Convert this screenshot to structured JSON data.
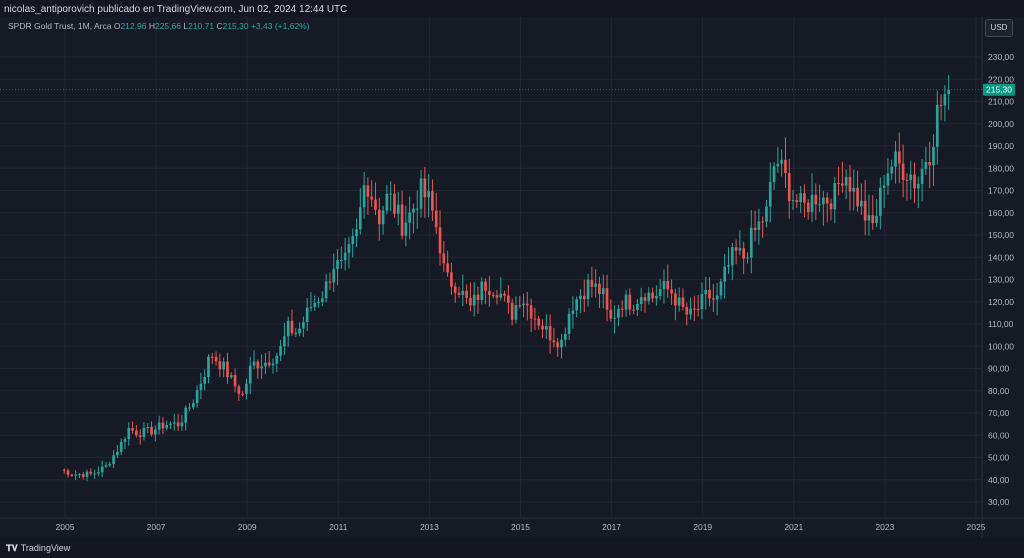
{
  "header": {
    "publisher_text": "nicolas_antiporovich publicado en TradingView.com, Jun 02, 2024 12:44 UTC"
  },
  "legend": {
    "title": "SPDR Gold Trust, 1M, Arca",
    "o_key": "O",
    "o_val": "212,96",
    "h_key": "H",
    "h_val": "225,66",
    "l_key": "L",
    "l_val": "210,71",
    "c_key": "C",
    "c_val": "215,30",
    "change": "+3,43 (+1,62%)"
  },
  "currency_button": "USD",
  "last_price_label": "215,30",
  "footer": {
    "brand": "TradingView"
  },
  "colors": {
    "up": "#26a69a",
    "down": "#ef5350",
    "bg": "#161a25",
    "grid": "#222633",
    "last_price": "#089981"
  },
  "chart_data": {
    "type": "candlestick",
    "title": "SPDR Gold Trust, 1M, Arca",
    "xlabel": "",
    "ylabel": "",
    "ylim": [
      20,
      240
    ],
    "y_ticks": [
      "30,00",
      "40,00",
      "50,00",
      "60,00",
      "70,00",
      "80,00",
      "90,00",
      "100,00",
      "110,00",
      "120,00",
      "130,00",
      "140,00",
      "150,00",
      "160,00",
      "170,00",
      "180,00",
      "190,00",
      "200,00",
      "210,00",
      "220,00",
      "230,00"
    ],
    "y_tick_values": [
      30,
      40,
      50,
      60,
      70,
      80,
      90,
      100,
      110,
      120,
      130,
      140,
      150,
      160,
      170,
      180,
      190,
      200,
      210,
      220,
      230
    ],
    "x_ticks": [
      "2005",
      "2007",
      "2009",
      "2011",
      "2013",
      "2015",
      "2017",
      "2019",
      "2021",
      "2023",
      "2025"
    ],
    "x_tick_values": [
      2005,
      2007,
      2009,
      2011,
      2013,
      2015,
      2017,
      2019,
      2021,
      2023,
      2025
    ],
    "grid": true,
    "last_price": 215.3,
    "anchors": [
      [
        2004.9,
        44.5
      ],
      [
        2005.2,
        42.5
      ],
      [
        2005.6,
        42.5
      ],
      [
        2005.9,
        46
      ],
      [
        2006.2,
        55
      ],
      [
        2006.4,
        63
      ],
      [
        2006.6,
        61
      ],
      [
        2006.9,
        62
      ],
      [
        2007.2,
        65
      ],
      [
        2007.5,
        65
      ],
      [
        2007.8,
        75
      ],
      [
        2008.1,
        90
      ],
      [
        2008.2,
        97
      ],
      [
        2008.5,
        90
      ],
      [
        2008.7,
        83
      ],
      [
        2008.9,
        78
      ],
      [
        2009.1,
        92
      ],
      [
        2009.4,
        93
      ],
      [
        2009.7,
        97
      ],
      [
        2009.9,
        108
      ],
      [
        2010.1,
        106
      ],
      [
        2010.4,
        118
      ],
      [
        2010.7,
        125
      ],
      [
        2010.9,
        137
      ],
      [
        2011.1,
        135
      ],
      [
        2011.4,
        150
      ],
      [
        2011.6,
        176
      ],
      [
        2011.7,
        170
      ],
      [
        2011.9,
        158
      ],
      [
        2012.1,
        168
      ],
      [
        2012.4,
        155
      ],
      [
        2012.6,
        160
      ],
      [
        2012.8,
        170
      ],
      [
        2013.0,
        165
      ],
      [
        2013.2,
        150
      ],
      [
        2013.35,
        130
      ],
      [
        2013.6,
        128
      ],
      [
        2013.9,
        117
      ],
      [
        2014.2,
        128
      ],
      [
        2014.5,
        126
      ],
      [
        2014.8,
        114
      ],
      [
        2015.0,
        123
      ],
      [
        2015.3,
        114
      ],
      [
        2015.6,
        106
      ],
      [
        2015.9,
        102
      ],
      [
        2016.1,
        118
      ],
      [
        2016.5,
        128
      ],
      [
        2016.8,
        124
      ],
      [
        2016.95,
        110
      ],
      [
        2017.2,
        120
      ],
      [
        2017.5,
        120
      ],
      [
        2017.7,
        125
      ],
      [
        2017.9,
        122
      ],
      [
        2018.1,
        126
      ],
      [
        2018.3,
        125
      ],
      [
        2018.5,
        118
      ],
      [
        2018.7,
        113
      ],
      [
        2018.9,
        117
      ],
      [
        2019.1,
        123
      ],
      [
        2019.3,
        120
      ],
      [
        2019.5,
        133
      ],
      [
        2019.7,
        142
      ],
      [
        2019.9,
        140
      ],
      [
        2020.1,
        150
      ],
      [
        2020.4,
        160
      ],
      [
        2020.6,
        185
      ],
      [
        2020.8,
        176
      ],
      [
        2020.95,
        168
      ],
      [
        2021.2,
        162
      ],
      [
        2021.5,
        168
      ],
      [
        2021.7,
        166
      ],
      [
        2021.9,
        168
      ],
      [
        2022.1,
        180
      ],
      [
        2022.3,
        170
      ],
      [
        2022.5,
        162
      ],
      [
        2022.7,
        152
      ],
      [
        2022.85,
        162
      ],
      [
        2023.0,
        178
      ],
      [
        2023.2,
        183
      ],
      [
        2023.4,
        180
      ],
      [
        2023.55,
        178
      ],
      [
        2023.7,
        172
      ],
      [
        2023.9,
        185
      ],
      [
        2024.0,
        188
      ],
      [
        2024.15,
        205
      ],
      [
        2024.3,
        212
      ],
      [
        2024.4,
        215.3
      ]
    ]
  }
}
